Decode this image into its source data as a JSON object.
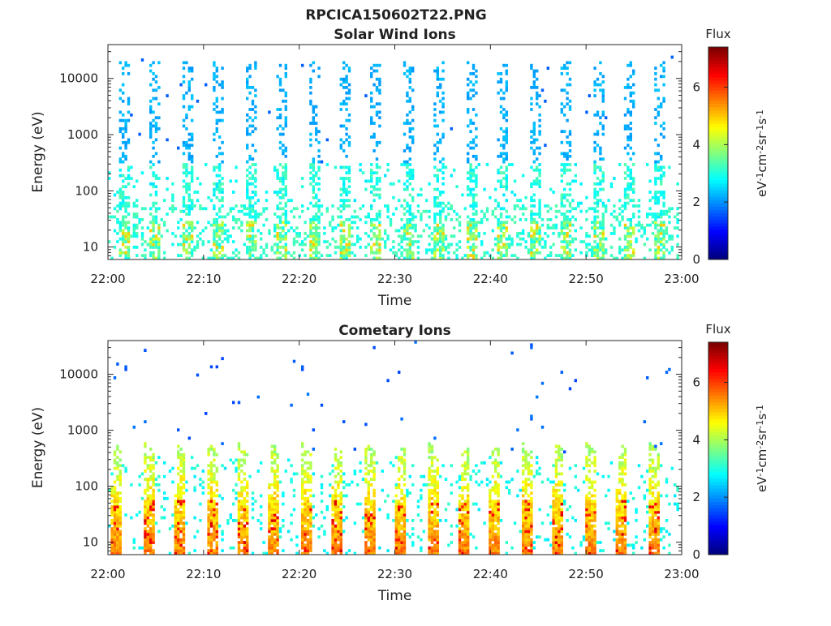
{
  "figure": {
    "title": "RPCICA150602T22.PNG"
  },
  "colormap": "jet",
  "chart_data": [
    {
      "type": "heatmap",
      "title": "Solar Wind Ions",
      "xlabel": "Time",
      "ylabel": "Energy (eV)",
      "yscale": "log",
      "xlim": [
        "22:00",
        "23:00"
      ],
      "ylim": [
        6,
        40000
      ],
      "x_ticks": [
        "22:00",
        "22:10",
        "22:20",
        "22:30",
        "22:40",
        "22:50",
        "23:00"
      ],
      "y_ticks": [
        "10",
        "100",
        "1000",
        "10000"
      ],
      "colorbar": {
        "label": "Flux",
        "unit_label": "eV-1cm-2sr-1s-1",
        "range": [
          0,
          7.4
        ],
        "ticks": [
          "0",
          "2",
          "4",
          "6"
        ]
      },
      "pattern": {
        "period_minutes": 3.3,
        "first_burst_minute": 1.3,
        "burst_energy_range_eV": [
          30,
          20000
        ],
        "typical_flux": 2.0,
        "low_energy_flux": 3.2,
        "peak_flux": 5.0
      }
    },
    {
      "type": "heatmap",
      "title": "Cometary Ions",
      "xlabel": "Time",
      "ylabel": "Energy (eV)",
      "yscale": "log",
      "xlim": [
        "22:00",
        "23:00"
      ],
      "ylim": [
        6,
        40000
      ],
      "x_ticks": [
        "22:00",
        "22:10",
        "22:20",
        "22:30",
        "22:40",
        "22:50",
        "23:00"
      ],
      "y_ticks": [
        "10",
        "100",
        "1000",
        "10000"
      ],
      "colorbar": {
        "label": "Flux",
        "unit_label": "eV-1cm-2sr-1s-1",
        "range": [
          0,
          7.4
        ],
        "ticks": [
          "0",
          "2",
          "4",
          "6"
        ]
      },
      "pattern": {
        "period_minutes": 3.3,
        "first_burst_minute": 0.5,
        "burst_energy_range_eV": [
          6,
          600
        ],
        "typical_flux": 3.5,
        "low_energy_flux": 5.2,
        "peak_flux": 6.8
      }
    }
  ]
}
